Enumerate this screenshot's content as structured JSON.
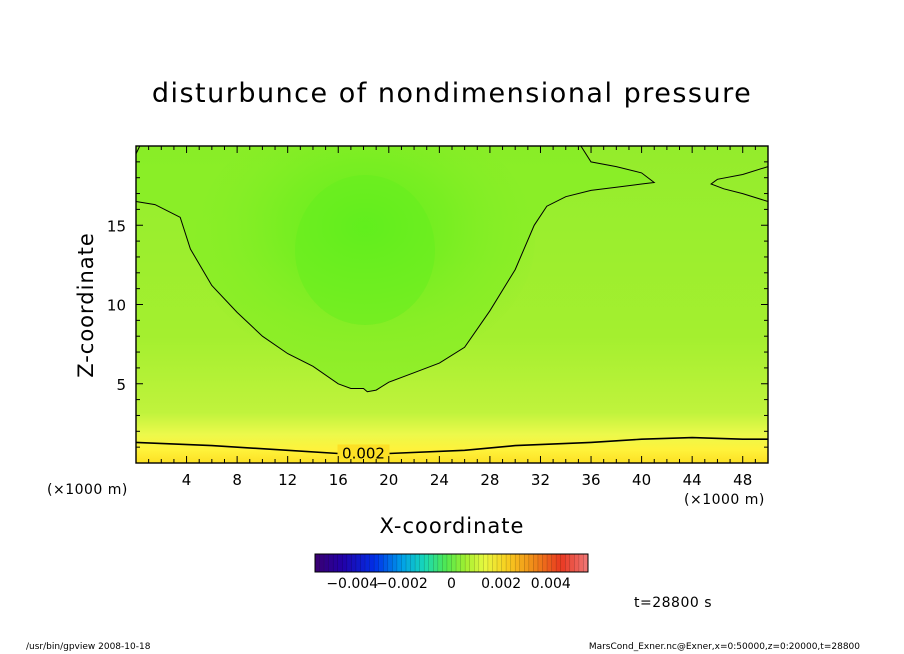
{
  "title": "disturbunce of nondimensional pressure",
  "x_axis": {
    "label": "X-coordinate",
    "unit": "(×1000 m)",
    "unit_right": "(×1000 m)",
    "ticks": [
      "4",
      "8",
      "12",
      "16",
      "20",
      "24",
      "28",
      "32",
      "36",
      "40",
      "44",
      "48"
    ]
  },
  "y_axis": {
    "label": "Z-coordinate",
    "ticks": [
      "5",
      "10",
      "15"
    ]
  },
  "colorbar": {
    "ticks": [
      "−0.004",
      "−0.002",
      "0",
      "0.002",
      "0.004"
    ],
    "range": [
      -0.0055,
      0.0055
    ]
  },
  "time_label": "t=28800 s",
  "footer": {
    "left": "/usr/bin/gpview  2008-10-18",
    "right": "MarsCond_Exner.nc@Exner,x=0:50000,z=0:20000,t=28800"
  },
  "chart_data": {
    "type": "heatmap",
    "title": "disturbunce of nondimensional pressure",
    "xlabel": "X-coordinate",
    "ylabel": "Z-coordinate",
    "xlim": [
      0,
      50
    ],
    "ylim": [
      0,
      20
    ],
    "x_unit": "×1000 m",
    "contours": [
      {
        "label": "0.002",
        "level": 0.002,
        "points": [
          [
            0,
            1.3
          ],
          [
            6,
            1.1
          ],
          [
            12,
            0.8
          ],
          [
            16,
            0.6
          ],
          [
            20,
            0.6
          ],
          [
            26,
            0.8
          ],
          [
            30,
            1.1
          ],
          [
            36,
            1.3
          ],
          [
            40,
            1.5
          ],
          [
            44,
            1.6
          ],
          [
            48,
            1.5
          ],
          [
            50,
            1.5
          ]
        ]
      },
      {
        "level": 0.0015,
        "label": "",
        "points": [
          [
            0,
            16.5
          ],
          [
            1.5,
            16.3
          ],
          [
            3.5,
            15.5
          ],
          [
            4.3,
            13.5
          ],
          [
            6,
            11.2
          ],
          [
            8,
            9.5
          ],
          [
            10,
            8.0
          ],
          [
            12,
            6.9
          ],
          [
            14,
            6.1
          ],
          [
            16,
            5.0
          ],
          [
            17,
            4.7
          ],
          [
            18,
            4.7
          ],
          [
            18.3,
            4.5
          ],
          [
            19,
            4.6
          ],
          [
            20,
            5.1
          ],
          [
            22,
            5.7
          ],
          [
            24,
            6.3
          ],
          [
            26,
            7.3
          ],
          [
            28,
            9.6
          ],
          [
            30,
            12.2
          ],
          [
            31.5,
            15.0
          ],
          [
            32.5,
            16.2
          ],
          [
            34,
            16.8
          ],
          [
            36,
            17.2
          ],
          [
            38,
            17.4
          ],
          [
            40,
            17.6
          ],
          [
            41,
            17.7
          ],
          [
            40,
            18.3
          ],
          [
            38,
            18.7
          ],
          [
            36,
            19.0
          ],
          [
            35.2,
            20
          ]
        ]
      },
      {
        "level": 0.0015,
        "label": "",
        "points": [
          [
            50,
            18.7
          ],
          [
            48,
            18.2
          ],
          [
            46,
            17.9
          ],
          [
            45.5,
            17.6
          ],
          [
            46.5,
            17.3
          ],
          [
            48,
            17.0
          ],
          [
            50,
            16.5
          ]
        ]
      },
      {
        "level": 0.0015,
        "label": "",
        "points": [
          [
            0.3,
            20
          ],
          [
            0,
            19.5
          ]
        ]
      }
    ]
  }
}
